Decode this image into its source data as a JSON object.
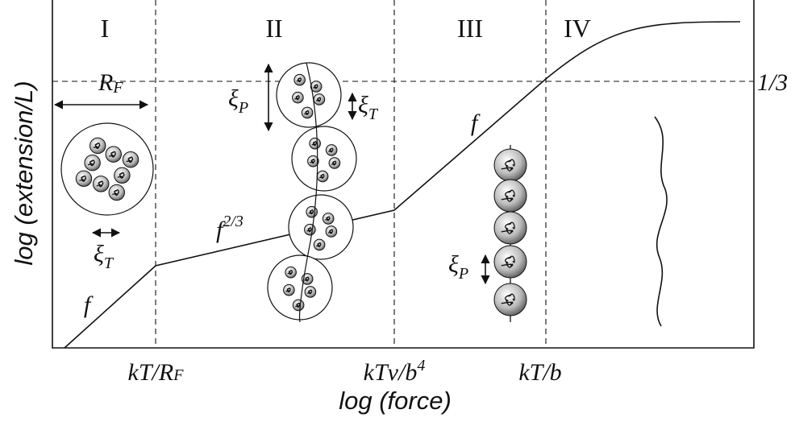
{
  "axis_labels": {
    "y": "log (extension/L)",
    "x": "log (force)"
  },
  "regions": [
    "I",
    "II",
    "III",
    "IV"
  ],
  "boundaries": [
    {
      "text": "kT/R",
      "sub": "F"
    },
    {
      "text": "kTν/b",
      "sup": "4"
    },
    {
      "text": "kT/b"
    }
  ],
  "plateau_label": "1/3",
  "scaling_labels": [
    {
      "text": "f"
    },
    {
      "text": "f",
      "sup": "2/3"
    },
    {
      "text": "f"
    }
  ],
  "annotations": [
    {
      "text": "R",
      "sub": "F"
    },
    {
      "text": "ξ",
      "sub": "T"
    },
    {
      "text": "ξ",
      "sub": "P"
    },
    {
      "text": "ξ",
      "sub": "T"
    },
    {
      "text": "ξ",
      "sub": "P"
    }
  ]
}
